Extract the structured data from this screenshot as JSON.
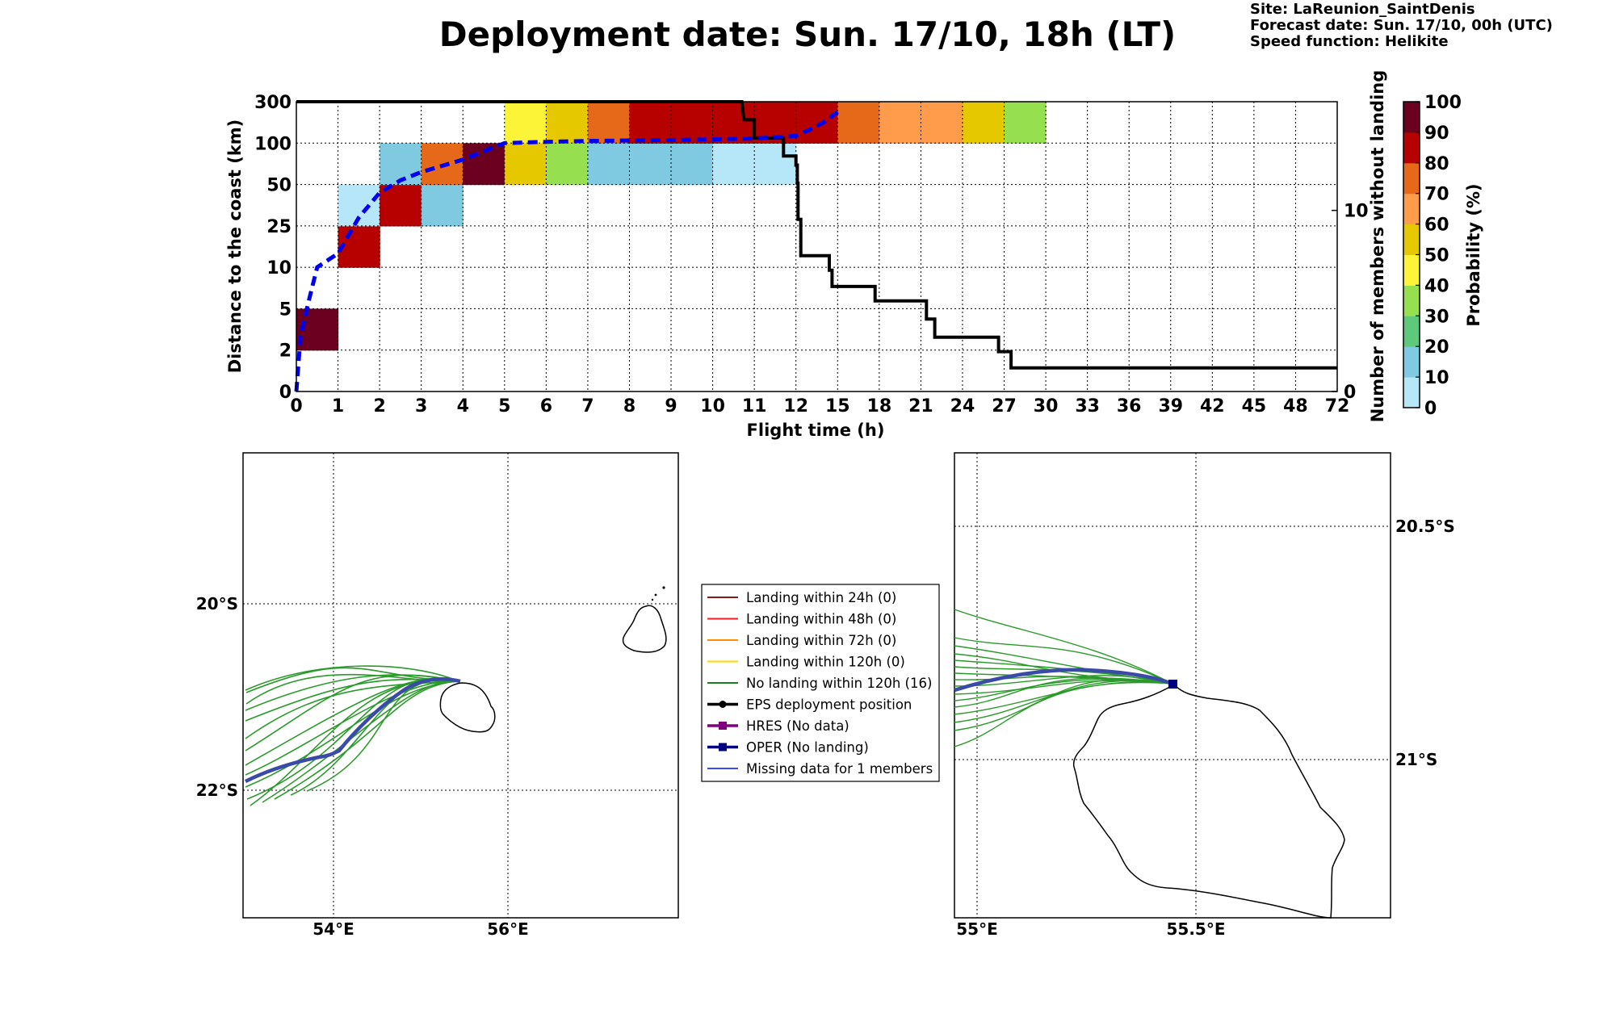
{
  "title": "Deployment date: Sun. 17/10, 18h (LT)",
  "info": {
    "site": "Site: LaReunion_SaintDenis",
    "forecast": "Forecast date: Sun. 17/10, 00h (UTC)",
    "speed": "Speed function: Helikite"
  },
  "chart_data": [
    {
      "type": "heatmap",
      "xlabel": "Flight time (h)",
      "ylabel": "Distance to the coast (km)",
      "y2label": "Number of members without landing",
      "colorbar_label": "Probability (%)",
      "x_ticks": [
        "0",
        "1",
        "2",
        "3",
        "4",
        "5",
        "6",
        "7",
        "8",
        "9",
        "10",
        "11",
        "12",
        "15",
        "18",
        "21",
        "24",
        "27",
        "30",
        "33",
        "36",
        "39",
        "42",
        "45",
        "48",
        "72"
      ],
      "y_ticks": [
        "0",
        "2",
        "5",
        "10",
        "25",
        "50",
        "100",
        "300"
      ],
      "y2_ticks": [
        "0",
        "10"
      ],
      "y2lim": [
        0,
        16
      ],
      "colorbar_ticks": [
        "0",
        "10",
        "20",
        "30",
        "40",
        "50",
        "60",
        "70",
        "80",
        "90",
        "100"
      ],
      "colorbar_colors": [
        "#b6e7f8",
        "#7fcae0",
        "#5ec87c",
        "#96e050",
        "#fcf537",
        "#e6c800",
        "#ff9c4b",
        "#e56919",
        "#b70000",
        "#6b0021"
      ],
      "cells": [
        {
          "col": 0,
          "row": 1,
          "p": 95
        },
        {
          "col": 1,
          "row": 3,
          "p": 85
        },
        {
          "col": 1,
          "row": 4,
          "p": 5
        },
        {
          "col": 2,
          "row": 4,
          "p": 85
        },
        {
          "col": 2,
          "row": 5,
          "p": 15
        },
        {
          "col": 3,
          "row": 4,
          "p": 15
        },
        {
          "col": 3,
          "row": 5,
          "p": 75
        },
        {
          "col": 4,
          "row": 5,
          "p": 95
        },
        {
          "col": 5,
          "row": 5,
          "p": 55
        },
        {
          "col": 5,
          "row": 6,
          "p": 45
        },
        {
          "col": 6,
          "row": 5,
          "p": 35
        },
        {
          "col": 6,
          "row": 6,
          "p": 55
        },
        {
          "col": 7,
          "row": 5,
          "p": 15
        },
        {
          "col": 7,
          "row": 6,
          "p": 75
        },
        {
          "col": 8,
          "row": 5,
          "p": 15
        },
        {
          "col": 8,
          "row": 6,
          "p": 85
        },
        {
          "col": 9,
          "row": 5,
          "p": 15
        },
        {
          "col": 9,
          "row": 6,
          "p": 85
        },
        {
          "col": 10,
          "row": 5,
          "p": 5
        },
        {
          "col": 10,
          "row": 6,
          "p": 85
        },
        {
          "col": 11,
          "row": 5,
          "p": 5
        },
        {
          "col": 11,
          "row": 6,
          "p": 85
        },
        {
          "col": 12,
          "row": 6,
          "p": 85
        },
        {
          "col": 13,
          "row": 6,
          "p": 75
        },
        {
          "col": 14,
          "row": 6,
          "p": 65
        },
        {
          "col": 15,
          "row": 6,
          "p": 65
        },
        {
          "col": 16,
          "row": 6,
          "p": 55
        },
        {
          "col": 17,
          "row": 6,
          "p": 35
        }
      ],
      "median_distance_km": [
        {
          "t": 0,
          "d": 0
        },
        {
          "t": 0.1,
          "d": 3
        },
        {
          "t": 0.3,
          "d": 6
        },
        {
          "t": 0.5,
          "d": 10
        },
        {
          "t": 1,
          "d": 15
        },
        {
          "t": 1.5,
          "d": 30
        },
        {
          "t": 2,
          "d": 45
        },
        {
          "t": 2.5,
          "d": 55
        },
        {
          "t": 3,
          "d": 65
        },
        {
          "t": 4,
          "d": 80
        },
        {
          "t": 5,
          "d": 100
        },
        {
          "t": 6,
          "d": 106
        },
        {
          "t": 7,
          "d": 110
        },
        {
          "t": 8,
          "d": 113
        },
        {
          "t": 9,
          "d": 115
        },
        {
          "t": 10,
          "d": 118
        },
        {
          "t": 11,
          "d": 122
        },
        {
          "t": 12,
          "d": 135
        },
        {
          "t": 13,
          "d": 165
        },
        {
          "t": 14,
          "d": 200
        },
        {
          "t": 15,
          "d": 250
        }
      ],
      "members_without_landing": [
        {
          "t": 0,
          "n": 16
        },
        {
          "t": 10.7,
          "n": 16
        },
        {
          "t": 10.75,
          "n": 15
        },
        {
          "t": 11,
          "n": 15
        },
        {
          "t": 11,
          "n": 14
        },
        {
          "t": 11.7,
          "n": 14
        },
        {
          "t": 11.7,
          "n": 13
        },
        {
          "t": 12,
          "n": 13
        },
        {
          "t": 12,
          "n": 12.5
        },
        {
          "t": 12.1,
          "n": 12.5
        },
        {
          "t": 12.1,
          "n": 11.5
        },
        {
          "t": 12.15,
          "n": 11.5
        },
        {
          "t": 12.15,
          "n": 9.5
        },
        {
          "t": 12.35,
          "n": 9.5
        },
        {
          "t": 12.35,
          "n": 7.5
        },
        {
          "t": 14.4,
          "n": 7.5
        },
        {
          "t": 14.4,
          "n": 6.7
        },
        {
          "t": 14.6,
          "n": 6.7
        },
        {
          "t": 14.6,
          "n": 5.8
        },
        {
          "t": 17.7,
          "n": 5.8
        },
        {
          "t": 17.7,
          "n": 5
        },
        {
          "t": 21.4,
          "n": 5
        },
        {
          "t": 21.4,
          "n": 4
        },
        {
          "t": 22,
          "n": 4
        },
        {
          "t": 22,
          "n": 3
        },
        {
          "t": 26.6,
          "n": 3
        },
        {
          "t": 26.6,
          "n": 2.2
        },
        {
          "t": 27.5,
          "n": 2.2
        },
        {
          "t": 27.5,
          "n": 1.3
        },
        {
          "t": 72,
          "n": 1.3
        }
      ]
    },
    {
      "type": "map",
      "x_ticks": [
        "54°E",
        "56°E"
      ],
      "y_ticks": [
        "20°S",
        "22°S"
      ]
    },
    {
      "type": "map",
      "x_ticks": [
        "55°E",
        "55.5°E"
      ],
      "y_ticks": [
        "20.5°S",
        "21°S"
      ]
    }
  ],
  "legend": [
    {
      "label": "Landing within 24h (0)",
      "color": "#8b1a1a",
      "marker": "none"
    },
    {
      "label": "Landing within 48h (0)",
      "color": "#ff2020",
      "marker": "none"
    },
    {
      "label": "Landing within 72h (0)",
      "color": "#ff8c00",
      "marker": "none"
    },
    {
      "label": "Landing within 120h (0)",
      "color": "#ffd700",
      "marker": "none"
    },
    {
      "label": "No landing within 120h (16)",
      "color": "#1e7d1e",
      "marker": "none"
    },
    {
      "label": "EPS deployment position",
      "color": "#000000",
      "marker": "circle"
    },
    {
      "label": "HRES (No data)",
      "color": "#800080",
      "marker": "square"
    },
    {
      "label": "OPER (No landing)",
      "color": "#000080",
      "marker": "square"
    },
    {
      "label": "Missing data for 1 members",
      "color": "#3a4bff",
      "marker": "none"
    }
  ],
  "colors": {
    "median_line": "#0000ee",
    "members_line": "#000000",
    "ensemble_tracks": "#2a9a2a",
    "oper_track": "#3a4aa8"
  }
}
